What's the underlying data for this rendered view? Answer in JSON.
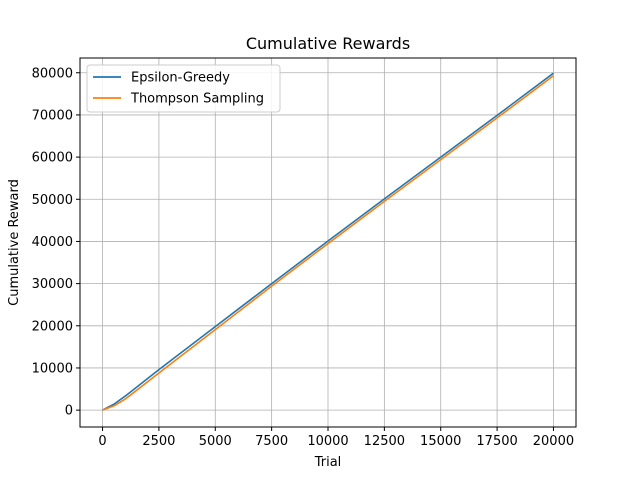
{
  "chart_data": {
    "type": "line",
    "title": "Cumulative Rewards",
    "xlabel": "Trial",
    "ylabel": "Cumulative Reward",
    "xlim": [
      -1000,
      21000
    ],
    "ylim": [
      -4000,
      83500
    ],
    "xticks": [
      0,
      2500,
      5000,
      7500,
      10000,
      12500,
      15000,
      17500,
      20000
    ],
    "yticks": [
      0,
      10000,
      20000,
      30000,
      40000,
      50000,
      60000,
      70000,
      80000
    ],
    "grid": true,
    "legend_position": "upper left",
    "series": [
      {
        "name": "Epsilon-Greedy",
        "color": "#1f77b4",
        "x": [
          0,
          500,
          1000,
          2500,
          5000,
          7500,
          10000,
          12500,
          15000,
          17500,
          20000
        ],
        "y": [
          0,
          1400,
          3300,
          9600,
          19800,
          30000,
          40100,
          50100,
          60000,
          69900,
          79900
        ]
      },
      {
        "name": "Thompson Sampling",
        "color": "#ff7f0e",
        "x": [
          0,
          500,
          1000,
          2500,
          5000,
          7500,
          10000,
          12500,
          15000,
          17500,
          20000
        ],
        "y": [
          0,
          1000,
          2600,
          8800,
          19100,
          29400,
          39500,
          49500,
          59400,
          69300,
          79300
        ]
      }
    ]
  }
}
